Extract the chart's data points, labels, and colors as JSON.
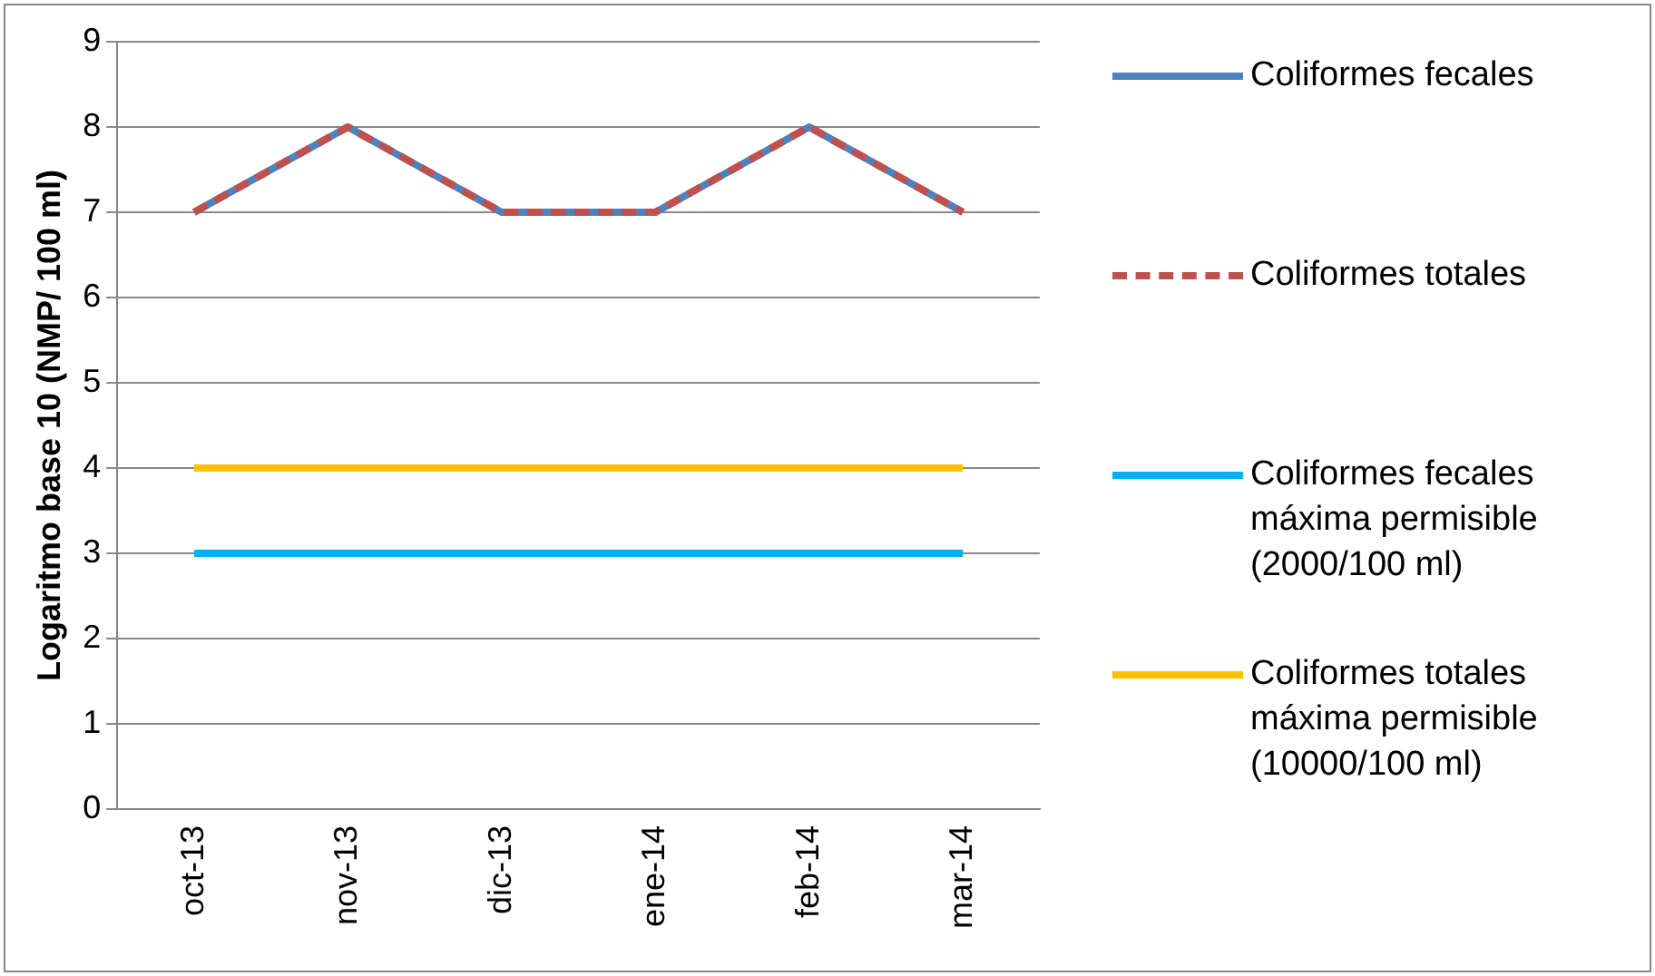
{
  "chart_data": {
    "type": "line",
    "ylabel": "Logaritmo base 10 (NMP/ 100 ml)",
    "categories": [
      "oct-13",
      "nov-13",
      "dic-13",
      "ene-14",
      "feb-14",
      "mar-14"
    ],
    "series": [
      {
        "name": "Coliformes fecales",
        "color": "#4f81bd",
        "values": [
          7,
          8,
          7,
          7,
          8,
          7
        ]
      },
      {
        "name": "Coliformes totales",
        "color": "#c0504d",
        "values": [
          7,
          8,
          7,
          7,
          8,
          7
        ],
        "line_style": "dashed"
      },
      {
        "name": "Coliformes fecales máxima permisible (2000/100 ml)",
        "color": "#00b0f0",
        "values": [
          3,
          3,
          3,
          3,
          3,
          3
        ]
      },
      {
        "name": "Coliformes totales máxima permisible (10000/100 ml)",
        "color": "#ffc000",
        "values": [
          4,
          4,
          4,
          4,
          4,
          4
        ]
      }
    ],
    "ylim": [
      0,
      9
    ],
    "yticks": [
      0,
      1,
      2,
      3,
      4,
      5,
      6,
      7,
      8,
      9
    ],
    "grid": "y",
    "legend": "right",
    "marker": "none"
  }
}
